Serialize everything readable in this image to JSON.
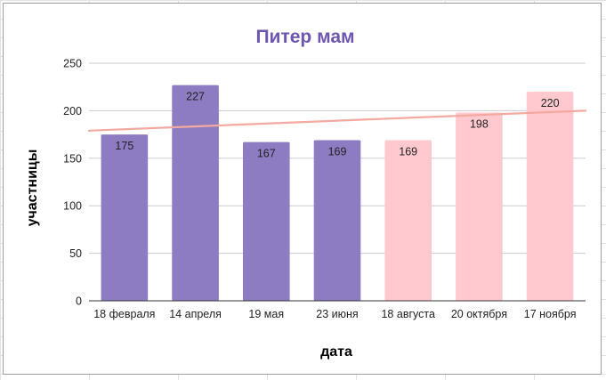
{
  "chart_data": {
    "type": "bar",
    "title": "Питер мам",
    "xlabel": "дата",
    "ylabel": "участницы",
    "categories": [
      "18 февраля",
      "14 апреля",
      "19 мая",
      "23 июня",
      "18 августа",
      "20 октября",
      "17 ноября"
    ],
    "values": [
      175,
      227,
      167,
      169,
      169,
      198,
      220
    ],
    "bar_colors": [
      "#8e7cc3",
      "#8e7cc3",
      "#8e7cc3",
      "#8e7cc3",
      "#ffc9cf",
      "#ffc9cf",
      "#ffc9cf"
    ],
    "ylim": [
      0,
      250
    ],
    "yticks": [
      0,
      50,
      100,
      150,
      200,
      250
    ],
    "grid": true,
    "legend": "none",
    "trendline": {
      "type": "linear",
      "color": "#f4a9a0",
      "start": 179,
      "end": 200
    },
    "colors": {
      "title": "#6d55b0",
      "axis_text": "#222222",
      "gridline": "#cccccc"
    }
  }
}
